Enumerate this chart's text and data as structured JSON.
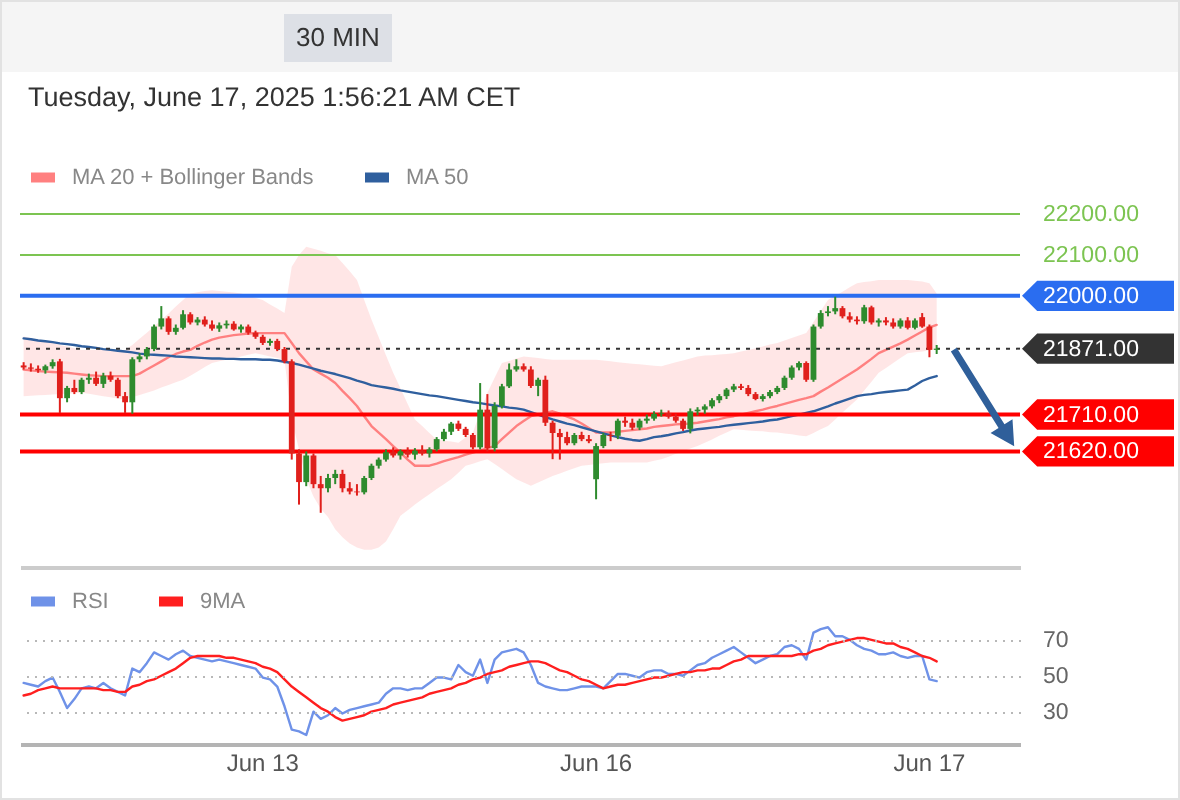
{
  "chart_data": [
    {
      "type": "candlestick",
      "subtitle": "Tuesday, June 17, 2025 1:56:21 AM CET",
      "annotations": [
        "30 MIN"
      ],
      "categories": [
        null,
        null,
        null,
        null,
        null,
        null,
        null,
        null,
        null,
        null,
        null,
        null,
        null,
        null,
        null,
        null,
        null,
        null,
        null,
        null,
        null,
        null,
        null,
        null,
        null,
        null,
        null,
        null,
        null,
        null,
        null,
        null,
        null,
        null,
        null,
        null,
        null,
        null,
        null,
        null,
        null,
        null,
        null,
        null,
        null,
        null,
        null,
        null,
        null,
        null,
        null,
        null,
        null,
        null,
        null,
        null,
        null,
        null,
        null,
        null,
        null,
        null,
        null,
        null,
        null,
        null,
        null,
        null,
        null,
        null,
        null,
        null,
        null,
        null,
        null,
        null,
        null,
        null,
        null,
        null,
        null,
        null,
        null,
        null,
        null,
        null,
        null,
        null,
        null,
        null,
        null,
        null,
        null,
        null,
        null,
        null,
        null,
        null,
        null,
        null,
        null,
        null,
        null,
        null,
        null,
        null,
        null,
        null,
        null,
        null,
        null,
        null,
        null,
        null,
        null,
        null,
        null,
        null,
        null,
        null,
        null,
        null,
        null,
        null,
        null,
        null,
        null
      ],
      "ohlc": [
        [
          21830,
          21838,
          21820,
          21825
        ],
        [
          21825,
          21835,
          21815,
          21822
        ],
        [
          21822,
          21830,
          21812,
          21818
        ],
        [
          21818,
          21832,
          21810,
          21828
        ],
        [
          21828,
          21845,
          21822,
          21838
        ],
        [
          21840,
          21846,
          21714,
          21750
        ],
        [
          21750,
          21780,
          21740,
          21775
        ],
        [
          21775,
          21795,
          21760,
          21765
        ],
        [
          21765,
          21800,
          21760,
          21795
        ],
        [
          21795,
          21810,
          21785,
          21800
        ],
        [
          21800,
          21815,
          21780,
          21785
        ],
        [
          21785,
          21812,
          21775,
          21805
        ],
        [
          21805,
          21815,
          21790,
          21795
        ],
        [
          21795,
          21800,
          21750,
          21755
        ],
        [
          21755,
          21765,
          21714,
          21740
        ],
        [
          21740,
          21850,
          21712,
          21845
        ],
        [
          21845,
          21860,
          21838,
          21852
        ],
        [
          21852,
          21875,
          21845,
          21870
        ],
        [
          21870,
          21930,
          21865,
          21925
        ],
        [
          21925,
          21975,
          21918,
          21945
        ],
        [
          21945,
          21950,
          21905,
          21912
        ],
        [
          21912,
          21930,
          21905,
          21922
        ],
        [
          21922,
          21965,
          21918,
          21955
        ],
        [
          21955,
          21960,
          21930,
          21935
        ],
        [
          21935,
          21948,
          21928,
          21942
        ],
        [
          21942,
          21950,
          21925,
          21930
        ],
        [
          21930,
          21940,
          21915,
          21920
        ],
        [
          21920,
          21935,
          21912,
          21928
        ],
        [
          21928,
          21940,
          21920,
          21932
        ],
        [
          21932,
          21938,
          21915,
          21918
        ],
        [
          21918,
          21930,
          21910,
          21925
        ],
        [
          21925,
          21930,
          21905,
          21910
        ],
        [
          21910,
          21915,
          21895,
          21900
        ],
        [
          21900,
          21905,
          21880,
          21885
        ],
        [
          21885,
          21895,
          21878,
          21890
        ],
        [
          21890,
          21895,
          21865,
          21870
        ],
        [
          21870,
          21875,
          21835,
          21840
        ],
        [
          21840,
          21845,
          21600,
          21615
        ],
        [
          21615,
          21625,
          21490,
          21545
        ],
        [
          21545,
          21620,
          21535,
          21610
        ],
        [
          21610,
          21615,
          21530,
          21540
        ],
        [
          21540,
          21560,
          21470,
          21530
        ],
        [
          21530,
          21565,
          21520,
          21555
        ],
        [
          21555,
          21575,
          21540,
          21565
        ],
        [
          21565,
          21575,
          21520,
          21530
        ],
        [
          21530,
          21545,
          21515,
          21522
        ],
        [
          21522,
          21540,
          21512,
          21520
        ],
        [
          21520,
          21560,
          21515,
          21555
        ],
        [
          21555,
          21590,
          21550,
          21585
        ],
        [
          21585,
          21605,
          21578,
          21600
        ],
        [
          21600,
          21625,
          21595,
          21618
        ],
        [
          21618,
          21630,
          21605,
          21610
        ],
        [
          21610,
          21625,
          21600,
          21620
        ],
        [
          21620,
          21630,
          21605,
          21612
        ],
        [
          21612,
          21628,
          21600,
          21622
        ],
        [
          21622,
          21635,
          21610,
          21615
        ],
        [
          21615,
          21630,
          21605,
          21625
        ],
        [
          21625,
          21655,
          21620,
          21650
        ],
        [
          21650,
          21675,
          21645,
          21668
        ],
        [
          21668,
          21692,
          21660,
          21688
        ],
        [
          21688,
          21695,
          21670,
          21675
        ],
        [
          21675,
          21680,
          21655,
          21660
        ],
        [
          21660,
          21665,
          21625,
          21630
        ],
        [
          21630,
          21787,
          21625,
          21722
        ],
        [
          21722,
          21760,
          21620,
          21628
        ],
        [
          21628,
          21740,
          21620,
          21731
        ],
        [
          21731,
          21785,
          21725,
          21779
        ],
        [
          21779,
          21835,
          21775,
          21820
        ],
        [
          21820,
          21845,
          21815,
          21828
        ],
        [
          21828,
          21835,
          21815,
          21820
        ],
        [
          21820,
          21828,
          21775,
          21780
        ],
        [
          21780,
          21800,
          21755,
          21795
        ],
        [
          21795,
          21805,
          21682,
          21690
        ],
        [
          21690,
          21695,
          21601,
          21665
        ],
        [
          21665,
          21675,
          21600,
          21655
        ],
        [
          21655,
          21668,
          21635,
          21640
        ],
        [
          21640,
          21665,
          21635,
          21660
        ],
        [
          21660,
          21668,
          21645,
          21650
        ],
        [
          21650,
          21660,
          21640,
          21645
        ],
        [
          21552,
          21640,
          21503,
          21633
        ],
        [
          21633,
          21665,
          21628,
          21660
        ],
        [
          21660,
          21668,
          21645,
          21658
        ],
        [
          21658,
          21700,
          21650,
          21695
        ],
        [
          21695,
          21705,
          21680,
          21690
        ],
        [
          21690,
          21700,
          21672,
          21678
        ],
        [
          21678,
          21700,
          21672,
          21695
        ],
        [
          21695,
          21710,
          21688,
          21700
        ],
        [
          21700,
          21718,
          21695,
          21712
        ],
        [
          21712,
          21722,
          21705,
          21714
        ],
        [
          21714,
          21720,
          21700,
          21705
        ],
        [
          21705,
          21712,
          21690,
          21695
        ],
        [
          21695,
          21700,
          21670,
          21675
        ],
        [
          21675,
          21725,
          21664,
          21718
        ],
        [
          21718,
          21728,
          21708,
          21722
        ],
        [
          21722,
          21735,
          21712,
          21730
        ],
        [
          21730,
          21750,
          21725,
          21745
        ],
        [
          21745,
          21760,
          21738,
          21755
        ],
        [
          21755,
          21775,
          21748,
          21771
        ],
        [
          21771,
          21785,
          21765,
          21779
        ],
        [
          21779,
          21785,
          21770,
          21775
        ],
        [
          21775,
          21782,
          21755,
          21760
        ],
        [
          21760,
          21765,
          21745,
          21748
        ],
        [
          21748,
          21760,
          21742,
          21755
        ],
        [
          21755,
          21770,
          21750,
          21765
        ],
        [
          21765,
          21780,
          21760,
          21775
        ],
        [
          21775,
          21805,
          21770,
          21800
        ],
        [
          21800,
          21830,
          21795,
          21825
        ],
        [
          21825,
          21840,
          21818,
          21836
        ],
        [
          21836,
          21840,
          21790,
          21795
        ],
        [
          21795,
          21930,
          21790,
          21925
        ],
        [
          21925,
          21965,
          21920,
          21958
        ],
        [
          21958,
          21975,
          21950,
          21962
        ],
        [
          21962,
          21998,
          21955,
          21970
        ],
        [
          21970,
          21975,
          21945,
          21950
        ],
        [
          21950,
          21960,
          21935,
          21942
        ],
        [
          21942,
          21950,
          21930,
          21938
        ],
        [
          21938,
          21978,
          21932,
          21972
        ],
        [
          21972,
          21976,
          21930,
          21935
        ],
        [
          21935,
          21945,
          21925,
          21940
        ],
        [
          21940,
          21948,
          21928,
          21935
        ],
        [
          21935,
          21945,
          21920,
          21925
        ],
        [
          21925,
          21945,
          21920,
          21940
        ],
        [
          21940,
          21948,
          21918,
          21922
        ],
        [
          21922,
          21945,
          21918,
          21940
        ],
        [
          21948,
          21958,
          21922,
          21925
        ],
        [
          21925,
          21930,
          21850,
          21868
        ],
        [
          21868,
          21880,
          21858,
          21871
        ]
      ],
      "colors": [
        "#e0201c",
        "#e0201c",
        "#e0201c",
        "#2e8b2e",
        "#2e8b2e",
        "#e0201c",
        "#2e8b2e",
        "#e0201c",
        "#2e8b2e",
        "#2e8b2e",
        "#e0201c",
        "#2e8b2e",
        "#e0201c",
        "#e0201c",
        "#e0201c",
        "#2e8b2e",
        "#2e8b2e",
        "#2e8b2e",
        "#2e8b2e",
        "#2e8b2e",
        "#e0201c",
        "#2e8b2e",
        "#2e8b2e",
        "#e0201c",
        "#2e8b2e",
        "#e0201c",
        "#e0201c",
        "#2e8b2e",
        "#2e8b2e",
        "#e0201c",
        "#2e8b2e",
        "#e0201c",
        "#e0201c",
        "#e0201c",
        "#2e8b2e",
        "#e0201c",
        "#e0201c",
        "#e0201c",
        "#e0201c",
        "#2e8b2e",
        "#e0201c",
        "#e0201c",
        "#2e8b2e",
        "#2e8b2e",
        "#e0201c",
        "#e0201c",
        "#e0201c",
        "#2e8b2e",
        "#2e8b2e",
        "#2e8b2e",
        "#2e8b2e",
        "#e0201c",
        "#2e8b2e",
        "#e0201c",
        "#2e8b2e",
        "#e0201c",
        "#2e8b2e",
        "#2e8b2e",
        "#2e8b2e",
        "#2e8b2e",
        "#e0201c",
        "#e0201c",
        "#e0201c",
        "#2e8b2e",
        "#e0201c",
        "#2e8b2e",
        "#2e8b2e",
        "#2e8b2e",
        "#2e8b2e",
        "#e0201c",
        "#e0201c",
        "#2e8b2e",
        "#e0201c",
        "#e0201c",
        "#e0201c",
        "#e0201c",
        "#2e8b2e",
        "#e0201c",
        "#e0201c",
        "#2e8b2e",
        "#2e8b2e",
        "#e0201c",
        "#2e8b2e",
        "#e0201c",
        "#e0201c",
        "#2e8b2e",
        "#2e8b2e",
        "#2e8b2e",
        "#2e8b2e",
        "#e0201c",
        "#e0201c",
        "#e0201c",
        "#2e8b2e",
        "#2e8b2e",
        "#2e8b2e",
        "#2e8b2e",
        "#2e8b2e",
        "#2e8b2e",
        "#2e8b2e",
        "#e0201c",
        "#e0201c",
        "#e0201c",
        "#2e8b2e",
        "#2e8b2e",
        "#2e8b2e",
        "#2e8b2e",
        "#2e8b2e",
        "#2e8b2e",
        "#e0201c",
        "#2e8b2e",
        "#2e8b2e",
        "#2e8b2e",
        "#2e8b2e",
        "#e0201c",
        "#e0201c",
        "#e0201c",
        "#2e8b2e",
        "#e0201c",
        "#2e8b2e",
        "#e0201c",
        "#e0201c",
        "#2e8b2e",
        "#e0201c",
        "#2e8b2e",
        "#e0201c",
        "#e0201c",
        "#2e8b2e"
      ],
      "series": [
        {
          "name": "MA 20 + Bollinger Bands",
          "type": "line",
          "color": "#ff8080",
          "values": [
            21820,
            21818,
            21816,
            21815,
            21814,
            21813,
            21812,
            21810,
            21808,
            21806,
            21805,
            21804,
            21804,
            21804,
            21804,
            21804,
            21810,
            21820,
            21830,
            21840,
            21850,
            21858,
            21864,
            21868,
            21878,
            21886,
            21893,
            21898,
            21901,
            21904,
            21906,
            21908,
            21909,
            21909,
            21909,
            21909,
            21909,
            21885,
            21860,
            21840,
            21820,
            21810,
            21800,
            21787,
            21768,
            21750,
            21731,
            21706,
            21682,
            21666,
            21650,
            21633,
            21617,
            21600,
            21585,
            21585,
            21585,
            21590,
            21596,
            21601,
            21606,
            21612,
            21617,
            21622,
            21628,
            21633,
            21650,
            21666,
            21682,
            21694,
            21706,
            21710,
            21714,
            21718,
            21712,
            21705,
            21698,
            21688,
            21677,
            21666,
            21666,
            21666,
            21668,
            21670,
            21672,
            21674,
            21676,
            21680,
            21682,
            21684,
            21686,
            21687,
            21688,
            21690,
            21693,
            21696,
            21699,
            21703,
            21706,
            21710,
            21714,
            21718,
            21722,
            21727,
            21731,
            21736,
            21741,
            21746,
            21750,
            21755,
            21766,
            21776,
            21787,
            21798,
            21809,
            21820,
            21833,
            21846,
            21860,
            21868,
            21876,
            21884,
            21893,
            21903,
            21913,
            21923,
            21929
          ],
          "lower": [
            21755,
            21756,
            21757,
            21758,
            21759,
            21760,
            21761,
            21762,
            21763,
            21761,
            21758,
            21755,
            21752,
            21749,
            21747,
            21752,
            21758,
            21763,
            21769,
            21776,
            21782,
            21789,
            21795,
            21805,
            21815,
            21826,
            21836,
            21840,
            21844,
            21848,
            21852,
            21856,
            21860,
            21856,
            21852,
            21848,
            21844,
            21698,
            21625,
            21552,
            21510,
            21480,
            21460,
            21430,
            21410,
            21395,
            21385,
            21380,
            21380,
            21385,
            21400,
            21430,
            21463,
            21476,
            21490,
            21503,
            21515,
            21528,
            21540,
            21552,
            21568,
            21585,
            21590,
            21596,
            21601,
            21589,
            21577,
            21564,
            21552,
            21544,
            21536,
            21544,
            21552,
            21560,
            21566,
            21573,
            21579,
            21585,
            21587,
            21589,
            21591,
            21593,
            21593,
            21593,
            21593,
            21593,
            21593,
            21597,
            21601,
            21607,
            21614,
            21620,
            21627,
            21633,
            21641,
            21649,
            21658,
            21666,
            21674,
            21673,
            21671,
            21670,
            21669,
            21667,
            21666,
            21664,
            21662,
            21659,
            21657,
            21665,
            21674,
            21682,
            21698,
            21715,
            21731,
            21747,
            21769,
            21790,
            21812,
            21824,
            21836,
            21848,
            21860,
            21862,
            21864,
            21867,
            21870
          ],
          "upper": [
            21901,
            21897,
            21893,
            21889,
            21885,
            21880,
            21876,
            21872,
            21868,
            21868,
            21868,
            21868,
            21868,
            21868,
            21868,
            21880,
            21895,
            21910,
            21925,
            21941,
            21957,
            21974,
            21990,
            22006,
            22009,
            22012,
            22014,
            22012,
            22010,
            22008,
            22006,
            22001,
            21995,
            21990,
            21979,
            21969,
            21958,
            22071,
            22100,
            22120,
            22115,
            22110,
            22104,
            22100,
            22080,
            22060,
            22039,
            21990,
            21942,
            21899,
            21855,
            21812,
            21774,
            21736,
            21698,
            21682,
            21665,
            21649,
            21646,
            21644,
            21641,
            21654,
            21666,
            21715,
            21763,
            21800,
            21836,
            21841,
            21847,
            21852,
            21850,
            21848,
            21846,
            21844,
            21844,
            21844,
            21844,
            21844,
            21844,
            21844,
            21842,
            21840,
            21838,
            21836,
            21834,
            21833,
            21831,
            21829,
            21828,
            21833,
            21838,
            21842,
            21847,
            21852,
            21854,
            21855,
            21857,
            21858,
            21860,
            21864,
            21868,
            21872,
            21876,
            21881,
            21885,
            21891,
            21897,
            21903,
            21909,
            21936,
            21963,
            21990,
            22000,
            22010,
            22021,
            22031,
            22034,
            22036,
            22039,
            22039,
            22039,
            22039,
            22039,
            22037,
            22035,
            22031,
            22006
          ]
        },
        {
          "name": "MA 50",
          "type": "line",
          "color": "#2f5f9e",
          "values": [
            21896,
            21894,
            21891,
            21889,
            21887,
            21884,
            21882,
            21880,
            21877,
            21875,
            21873,
            21870,
            21868,
            21866,
            21864,
            21862,
            21859,
            21857,
            21856,
            21855,
            21854,
            21852,
            21851,
            21850,
            21849,
            21848,
            21847,
            21847,
            21846,
            21846,
            21845,
            21845,
            21845,
            21844,
            21844,
            21842,
            21839,
            21836,
            21832,
            21827,
            21822,
            21817,
            21813,
            21809,
            21804,
            21799,
            21793,
            21788,
            21782,
            21779,
            21776,
            21773,
            21769,
            21766,
            21763,
            21760,
            21757,
            21755,
            21752,
            21749,
            21746,
            21743,
            21740,
            21738,
            21735,
            21732,
            21730,
            21727,
            21725,
            21722,
            21716,
            21710,
            21704,
            21698,
            21693,
            21688,
            21684,
            21679,
            21674,
            21669,
            21664,
            21659,
            21655,
            21651,
            21648,
            21646,
            21650,
            21655,
            21657,
            21660,
            21664,
            21667,
            21671,
            21674,
            21676,
            21678,
            21680,
            21683,
            21685,
            21687,
            21689,
            21691,
            21693,
            21696,
            21698,
            21702,
            21706,
            21710,
            21714,
            21718,
            21724,
            21730,
            21737,
            21743,
            21749,
            21755,
            21758,
            21760,
            21763,
            21765,
            21767,
            21769,
            21771,
            21781,
            21792,
            21799,
            21804
          ]
        }
      ],
      "ylim": [
        21340,
        22200
      ],
      "yticks": [
        {
          "value": 21620,
          "label": "21620.00"
        },
        {
          "value": 21710,
          "label": "21710.00"
        },
        {
          "value": 21871,
          "label": "21871.00"
        },
        {
          "value": 22000,
          "label": "22000.00"
        },
        {
          "value": 22100,
          "label": "22100.00"
        },
        {
          "value": 22200,
          "label": "22200.00"
        }
      ],
      "ref_lines": [
        {
          "axis": "y",
          "value": 22200,
          "color": "#7cc451"
        },
        {
          "axis": "y",
          "value": 22100,
          "color": "#7cc451"
        },
        {
          "axis": "y",
          "value": 22000,
          "color": "#2a6df0"
        },
        {
          "axis": "y",
          "value": 21871,
          "color": "#333333",
          "line_style": "dotted"
        },
        {
          "axis": "y",
          "value": 21710,
          "color": "#ff0000"
        },
        {
          "axis": "y",
          "value": 21620,
          "color": "#ff0000"
        }
      ],
      "legend": "top left",
      "tick_labels": "y"
    },
    {
      "type": "line",
      "categories": [
        null,
        null,
        null,
        null,
        null,
        null,
        null,
        null,
        null,
        null,
        null,
        null,
        null,
        null,
        null,
        null,
        null,
        null,
        null,
        null,
        null,
        null,
        null,
        null,
        null,
        null,
        null,
        null,
        null,
        null,
        null,
        null,
        null,
        "Jun 13",
        null,
        null,
        null,
        null,
        null,
        null,
        null,
        null,
        null,
        null,
        null,
        null,
        null,
        null,
        null,
        null,
        null,
        null,
        null,
        null,
        null,
        null,
        null,
        null,
        null,
        null,
        null,
        null,
        null,
        null,
        null,
        null,
        null,
        null,
        null,
        null,
        null,
        null,
        null,
        null,
        null,
        null,
        null,
        null,
        null,
        "Jun 16",
        null,
        null,
        null,
        null,
        null,
        null,
        null,
        null,
        null,
        null,
        null,
        null,
        null,
        null,
        null,
        null,
        null,
        null,
        null,
        null,
        null,
        null,
        null,
        null,
        null,
        null,
        null,
        null,
        null,
        null,
        null,
        null,
        null,
        null,
        null,
        null,
        null,
        null,
        null,
        null,
        null,
        null,
        null,
        null,
        null,
        "Jun 17",
        null
      ],
      "series": [
        {
          "name": "RSI",
          "color": "#6f92e8",
          "values": [
            46,
            45,
            44,
            47,
            49,
            41,
            32,
            37,
            43,
            44,
            43,
            46,
            43,
            41,
            39,
            54,
            52,
            57,
            63,
            61,
            59,
            62,
            64,
            61,
            60,
            59,
            58,
            59,
            58,
            57,
            56,
            55,
            54,
            49,
            48,
            44,
            33,
            20,
            19,
            17,
            30,
            26,
            28,
            32,
            29,
            31,
            32,
            33,
            34,
            35,
            40,
            43,
            43,
            42,
            43,
            43,
            46,
            49,
            49,
            48,
            56,
            52,
            50,
            59,
            46,
            59,
            63,
            64,
            65,
            63,
            56,
            46,
            44,
            43,
            42,
            42,
            43,
            44,
            44,
            44,
            43,
            47,
            51,
            51,
            50,
            49,
            52,
            53,
            53,
            51,
            51,
            50,
            53,
            56,
            57,
            60,
            62,
            64,
            66,
            63,
            60,
            57,
            59,
            61,
            62,
            66,
            67,
            65,
            59,
            74,
            76,
            77,
            72,
            72,
            70,
            67,
            65,
            64,
            62,
            62,
            63,
            61,
            60,
            61,
            61,
            48,
            47
          ]
        },
        {
          "name": "9MA",
          "color": "#ff1f1f",
          "values": [
            39,
            40,
            42,
            43,
            44,
            43,
            43,
            43,
            43,
            43,
            43,
            42,
            42,
            41,
            41,
            44,
            45,
            47,
            48,
            50,
            52,
            54,
            57,
            60,
            61,
            61,
            61,
            61,
            60,
            60,
            59,
            58,
            57,
            55,
            54,
            52,
            48,
            44,
            41,
            38,
            35,
            32,
            30,
            27,
            25,
            26,
            27,
            28,
            30,
            31,
            32,
            34,
            35,
            36,
            37,
            38,
            40,
            41,
            42,
            43,
            45,
            46,
            48,
            49,
            51,
            52,
            53,
            55,
            56,
            57,
            58,
            58,
            57,
            55,
            53,
            52,
            50,
            48,
            47,
            45,
            43,
            44,
            45,
            45,
            46,
            47,
            48,
            49,
            49,
            50,
            51,
            52,
            52,
            53,
            53,
            54,
            54,
            56,
            58,
            59,
            61,
            61,
            61,
            61,
            61,
            61,
            61,
            62,
            62,
            64,
            65,
            67,
            68,
            69,
            70,
            71,
            71,
            70,
            69,
            68,
            68,
            66,
            65,
            63,
            61,
            60,
            58
          ]
        }
      ],
      "ylim": [
        12,
        110
      ],
      "yticks": [
        30,
        50,
        70
      ],
      "grid": "y",
      "legend": "top left"
    }
  ]
}
